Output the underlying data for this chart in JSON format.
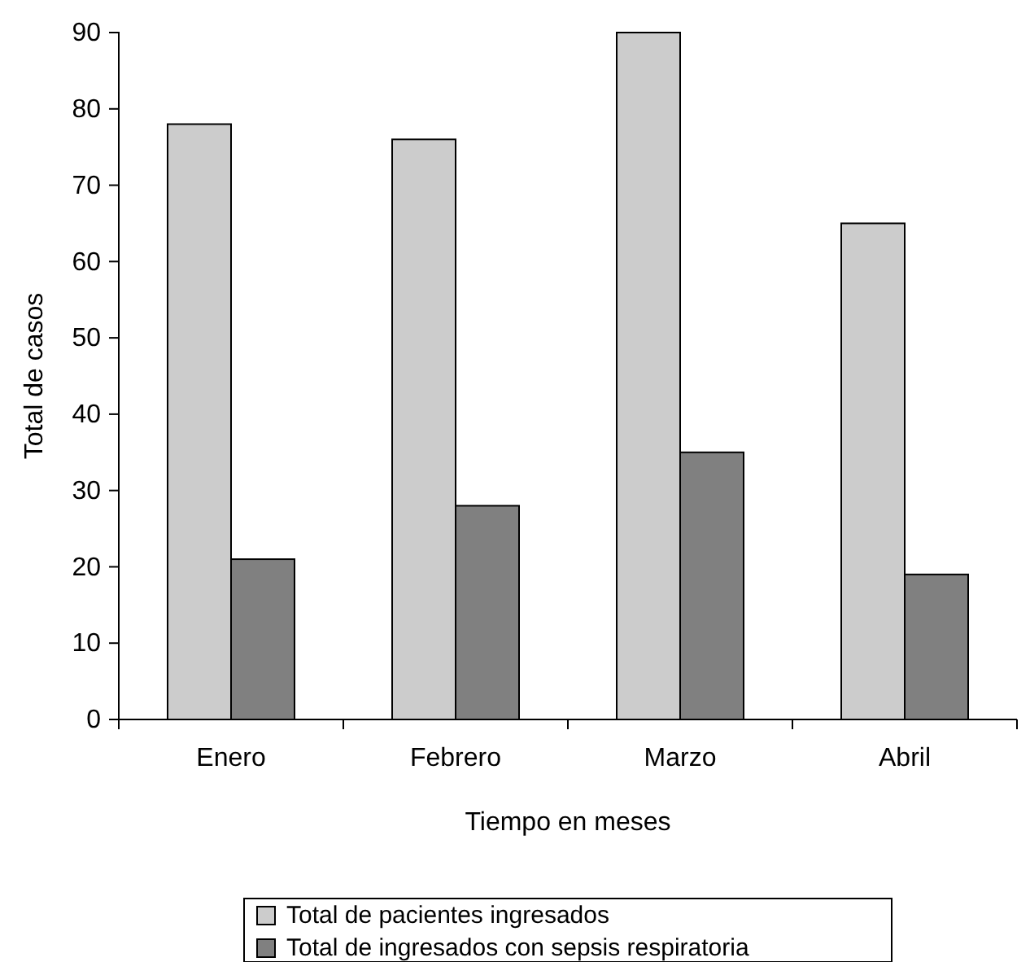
{
  "chart_data": {
    "type": "bar",
    "xlabel": "Tiempo en meses",
    "ylabel": "Total de casos",
    "categories": [
      "Enero",
      "Febrero",
      "Marzo",
      "Abril"
    ],
    "series": [
      {
        "name": "Total de pacientes ingresados",
        "color": "#cccccc",
        "values": [
          78,
          76,
          90,
          65
        ]
      },
      {
        "name": "Total de ingresados con sepsis respiratoria",
        "color": "#808080",
        "values": [
          21,
          28,
          35,
          19
        ]
      }
    ],
    "ylim": [
      0,
      90
    ],
    "yticks": [
      0,
      10,
      20,
      30,
      40,
      50,
      60,
      70,
      80,
      90
    ],
    "grid": false,
    "legend": "bottom"
  }
}
